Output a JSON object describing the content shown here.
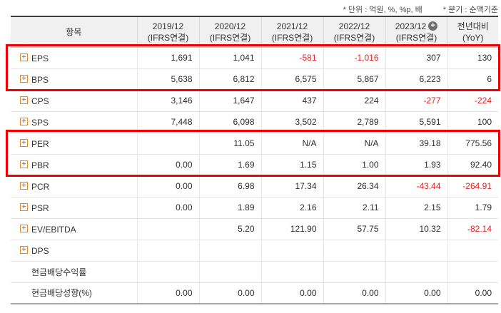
{
  "notes": {
    "unit": "* 단위 : 억원, %, %p, 배",
    "period": "* 분기 : 순액기준"
  },
  "table": {
    "item_header": "항목",
    "columns": [
      {
        "period": "2019/12",
        "basis": "(IFRS연결)",
        "has_plus": false
      },
      {
        "period": "2020/12",
        "basis": "(IFRS연결)",
        "has_plus": false
      },
      {
        "period": "2021/12",
        "basis": "(IFRS연결)",
        "has_plus": false
      },
      {
        "period": "2022/12",
        "basis": "(IFRS연결)",
        "has_plus": false
      },
      {
        "period": "2023/12",
        "basis": "(IFRS연결)",
        "has_plus": true
      },
      {
        "period": "전년대비",
        "basis": "(YoY)",
        "has_plus": false
      }
    ],
    "rows": [
      {
        "label": "EPS",
        "expandable": true,
        "values": [
          "1,691",
          "1,041",
          "-581",
          "-1,016",
          "307",
          "130"
        ]
      },
      {
        "label": "BPS",
        "expandable": true,
        "values": [
          "5,638",
          "6,812",
          "6,575",
          "5,867",
          "6,223",
          "6"
        ]
      },
      {
        "label": "CPS",
        "expandable": true,
        "values": [
          "3,146",
          "1,647",
          "437",
          "224",
          "-277",
          "-224"
        ]
      },
      {
        "label": "SPS",
        "expandable": true,
        "values": [
          "7,448",
          "6,098",
          "3,502",
          "2,789",
          "5,591",
          "100"
        ]
      },
      {
        "label": "PER",
        "expandable": true,
        "values": [
          "",
          "11.05",
          "N/A",
          "N/A",
          "39.18",
          "775.56"
        ]
      },
      {
        "label": "PBR",
        "expandable": true,
        "values": [
          "0.00",
          "1.69",
          "1.15",
          "1.00",
          "1.93",
          "92.40"
        ]
      },
      {
        "label": "PCR",
        "expandable": true,
        "values": [
          "0.00",
          "6.98",
          "17.34",
          "26.34",
          "-43.44",
          "-264.91"
        ]
      },
      {
        "label": "PSR",
        "expandable": true,
        "values": [
          "0.00",
          "1.89",
          "2.16",
          "2.11",
          "2.15",
          "1.79"
        ]
      },
      {
        "label": "EV/EBITDA",
        "expandable": true,
        "values": [
          "",
          "5.20",
          "121.90",
          "57.75",
          "10.32",
          "-82.14"
        ]
      },
      {
        "label": "DPS",
        "expandable": true,
        "values": [
          "",
          "",
          "",
          "",
          "",
          ""
        ]
      },
      {
        "label": "현금배당수익률",
        "expandable": false,
        "values": [
          "",
          "",
          "",
          "",
          "",
          ""
        ]
      },
      {
        "label": "현금배당성향(%)",
        "expandable": false,
        "values": [
          "0.00",
          "0.00",
          "0.00",
          "0.00",
          "0.00",
          "0.00"
        ]
      }
    ],
    "highlights": [
      {
        "rows": [
          0,
          1
        ]
      },
      {
        "rows": [
          4,
          5
        ]
      }
    ]
  },
  "colors": {
    "negative_value": "#e32222",
    "highlight_border": "#ee0000",
    "header_bg": "#f0f0f0",
    "plus_icon_orange": "#ee7012",
    "column_plus_circle_gray": "#6e6e6e",
    "text": "#333333"
  }
}
